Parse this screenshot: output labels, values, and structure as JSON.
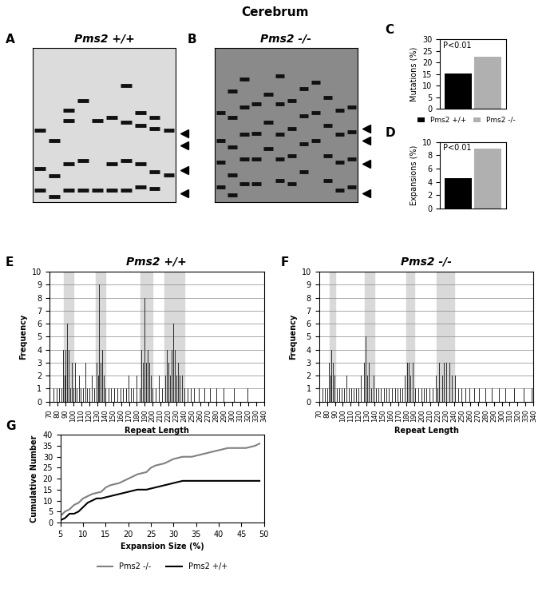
{
  "title": "Cerebrum",
  "chart_data": [
    {
      "type": "gel",
      "panel": "A",
      "title": "Pms2 +/+",
      "color": "#dcdcdc",
      "ylim": [
        0,
        100
      ],
      "tick_labels": false,
      "lanes": [
        [
          47,
          22,
          8
        ],
        [
          40,
          17,
          4
        ],
        [
          60,
          53,
          25,
          8
        ],
        [
          66,
          27,
          8
        ],
        [
          53,
          8
        ],
        [
          55,
          25,
          8
        ],
        [
          76,
          52,
          27,
          8
        ],
        [
          58,
          50,
          25,
          10
        ],
        [
          55,
          48,
          20,
          9
        ],
        [
          47,
          18
        ]
      ],
      "arrows": [
        45,
        37,
        21,
        6
      ]
    },
    {
      "type": "gel",
      "panel": "B",
      "title": "Pms2 -/-",
      "color": "#8a8a8a",
      "ylim": [
        0,
        100
      ],
      "tick_labels": false,
      "lanes": [
        [
          58,
          40,
          26,
          10
        ],
        [
          72,
          55,
          36,
          18,
          5
        ],
        [
          80,
          62,
          44,
          28,
          12
        ],
        [
          64,
          45,
          28,
          12
        ],
        [
          70,
          52,
          35
        ],
        [
          82,
          64,
          44,
          28,
          14
        ],
        [
          66,
          48,
          30,
          12
        ],
        [
          74,
          56,
          38,
          20
        ],
        [
          78,
          58,
          40
        ],
        [
          68,
          50,
          30,
          14
        ],
        [
          60,
          44,
          26,
          8
        ],
        [
          62,
          46,
          28,
          10
        ]
      ],
      "arrows": [
        48,
        40,
        25,
        6
      ]
    },
    {
      "type": "bar",
      "panel": "C",
      "y_label": "Mutations (%)",
      "annotation": "P<0.01",
      "categories": [
        "Pms2 +/+",
        "Pms2 -/-"
      ],
      "values": [
        15.3,
        22.5
      ],
      "colors": [
        "#000000",
        "#b0b0b0"
      ],
      "ylim": [
        0,
        30
      ],
      "yticks": [
        0,
        5,
        10,
        15,
        20,
        25,
        30
      ],
      "tick_labels": "y",
      "legend": "upper center"
    },
    {
      "type": "bar",
      "panel": "D",
      "y_label": "Expansions (%)",
      "annotation": "P<0.01",
      "categories": [
        "Pms2 +/+",
        "Pms2 -/-"
      ],
      "values": [
        4.6,
        9.0
      ],
      "colors": [
        "#000000",
        "#b0b0b0"
      ],
      "ylim": [
        0,
        10
      ],
      "yticks": [
        0,
        2,
        4,
        6,
        8,
        10
      ],
      "tick_labels": "y"
    },
    {
      "type": "bar",
      "panel": "E",
      "title": "Pms2 +/+",
      "x_label": "Repeat Length",
      "y_label": "Frequency",
      "color": "#303030",
      "grid": true,
      "highlights": [
        [
          88,
          100
        ],
        [
          128,
          140
        ],
        [
          185,
          200
        ],
        [
          215,
          240
        ]
      ],
      "x": [
        72,
        76,
        80,
        83,
        86,
        88,
        90,
        91,
        93,
        95,
        97,
        99,
        101,
        103,
        105,
        108,
        110,
        113,
        116,
        118,
        121,
        124,
        127,
        130,
        132,
        133,
        135,
        137,
        139,
        141,
        145,
        148,
        152,
        156,
        160,
        163,
        167,
        170,
        173,
        176,
        180,
        184,
        186,
        188,
        190,
        192,
        194,
        196,
        198,
        200,
        204,
        208,
        212,
        216,
        218,
        220,
        222,
        224,
        226,
        228,
        230,
        232,
        234,
        237,
        240,
        244,
        248,
        252,
        258,
        265,
        272,
        280,
        290,
        303,
        320
      ],
      "values": [
        1,
        1,
        1,
        1,
        1,
        4,
        2,
        4,
        6,
        4,
        1,
        3,
        1,
        3,
        1,
        2,
        1,
        1,
        3,
        1,
        1,
        2,
        1,
        3,
        2,
        9,
        3,
        4,
        2,
        1,
        1,
        1,
        1,
        1,
        1,
        1,
        1,
        2,
        1,
        1,
        2,
        1,
        4,
        3,
        8,
        3,
        4,
        3,
        2,
        1,
        1,
        2,
        1,
        2,
        4,
        3,
        2,
        4,
        6,
        4,
        2,
        3,
        2,
        2,
        1,
        1,
        1,
        1,
        1,
        1,
        1,
        1,
        1,
        1,
        1
      ],
      "xlim": [
        70,
        340
      ],
      "xticks": [
        70,
        80,
        90,
        100,
        110,
        120,
        130,
        140,
        150,
        160,
        170,
        180,
        190,
        200,
        210,
        220,
        230,
        240,
        250,
        260,
        270,
        280,
        290,
        300,
        310,
        320,
        330,
        340
      ],
      "ylim": [
        0,
        10
      ],
      "yticks": [
        0,
        1,
        2,
        3,
        4,
        5,
        6,
        7,
        8,
        9,
        10
      ]
    },
    {
      "type": "bar",
      "panel": "F",
      "title": "Pms2 -/-",
      "x_label": "Repeat Length",
      "y_label": "Frequency",
      "color": "#303030",
      "grid": true,
      "highlights": [
        [
          83,
          90
        ],
        [
          128,
          140
        ],
        [
          180,
          190
        ],
        [
          218,
          240
        ]
      ],
      "x": [
        71,
        75,
        78,
        81,
        83,
        85,
        86,
        88,
        90,
        93,
        96,
        99,
        102,
        105,
        108,
        111,
        114,
        117,
        120,
        123,
        127,
        129,
        131,
        133,
        136,
        139,
        142,
        145,
        148,
        152,
        155,
        158,
        162,
        166,
        169,
        172,
        175,
        178,
        181,
        183,
        185,
        188,
        191,
        195,
        199,
        203,
        206,
        210,
        214,
        218,
        220,
        222,
        226,
        228,
        231,
        235,
        238,
        242,
        246,
        250,
        255,
        260,
        266,
        272,
        280,
        288,
        297,
        305,
        316,
        328,
        338
      ],
      "values": [
        1,
        1,
        1,
        1,
        3,
        2,
        4,
        3,
        2,
        1,
        1,
        1,
        1,
        2,
        1,
        1,
        1,
        1,
        1,
        2,
        3,
        5,
        2,
        3,
        1,
        2,
        1,
        1,
        1,
        1,
        1,
        1,
        1,
        1,
        1,
        1,
        1,
        2,
        3,
        3,
        2,
        3,
        1,
        1,
        1,
        1,
        1,
        1,
        1,
        2,
        1,
        3,
        2,
        3,
        3,
        3,
        2,
        2,
        1,
        1,
        1,
        1,
        1,
        1,
        1,
        1,
        1,
        1,
        1,
        1,
        1
      ],
      "xlim": [
        70,
        340
      ],
      "xticks": [
        70,
        80,
        90,
        100,
        110,
        120,
        130,
        140,
        150,
        160,
        170,
        180,
        190,
        200,
        210,
        220,
        230,
        240,
        250,
        260,
        270,
        280,
        290,
        300,
        310,
        320,
        330,
        340
      ],
      "ylim": [
        0,
        10
      ],
      "yticks": [
        0,
        1,
        2,
        3,
        4,
        5,
        6,
        7,
        8,
        9,
        10
      ]
    },
    {
      "type": "line",
      "panel": "G",
      "x_label": "Expansion Size (%)",
      "y_label": "Cumulative Number",
      "legend": "upper center",
      "series": [
        {
          "name": "Pms2 -/-",
          "color": "#808080",
          "x": [
            5,
            6,
            7,
            8,
            9,
            10,
            11,
            12,
            14,
            15,
            16,
            18,
            20,
            22,
            24,
            25,
            26,
            28,
            30,
            32,
            34,
            36,
            38,
            40,
            42,
            44,
            46,
            48,
            49
          ],
          "values": [
            3,
            5,
            6,
            8,
            9,
            11,
            12,
            13,
            14,
            16,
            17,
            18,
            20,
            22,
            23,
            25,
            26,
            27,
            29,
            30,
            30,
            31,
            32,
            33,
            34,
            34,
            34,
            35,
            36
          ]
        },
        {
          "name": "Pms2 +/+",
          "color": "#000000",
          "x": [
            5,
            6,
            7,
            8,
            9,
            10,
            11,
            12,
            13,
            14,
            16,
            18,
            20,
            22,
            24,
            26,
            28,
            30,
            32,
            34,
            36,
            40,
            44,
            49
          ],
          "values": [
            1,
            2,
            4,
            4,
            5,
            7,
            9,
            10,
            11,
            11,
            12,
            13,
            14,
            15,
            15,
            16,
            17,
            18,
            19,
            19,
            19,
            19,
            19,
            19
          ]
        }
      ],
      "xlim": [
        5,
        50
      ],
      "xticks": [
        5,
        10,
        15,
        20,
        25,
        30,
        35,
        40,
        45,
        50
      ],
      "ylim": [
        0,
        40
      ],
      "yticks": [
        0,
        5,
        10,
        15,
        20,
        25,
        30,
        35,
        40
      ]
    }
  ]
}
